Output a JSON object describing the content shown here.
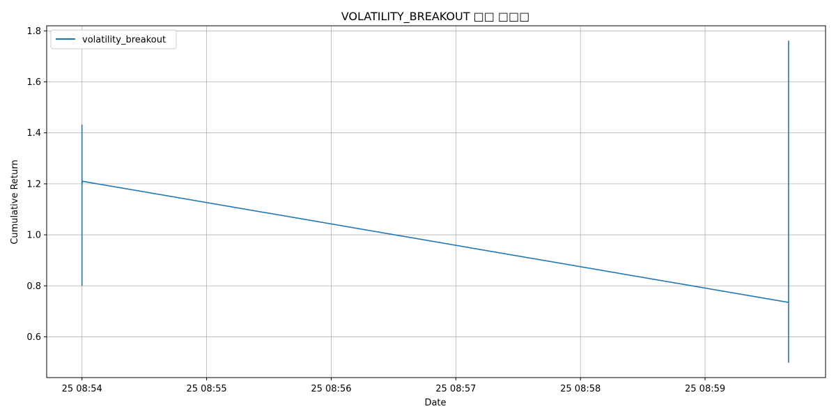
{
  "chart_data": {
    "type": "line",
    "title": "VOLATILITY_BREAKOUT □□ □□□",
    "xlabel": "Date",
    "ylabel": "Cumulative Return",
    "x_tick_labels": [
      "25 08:54",
      "25 08:55",
      "25 08:56",
      "25 08:57",
      "25 08:58",
      "25 08:59"
    ],
    "x_ticks_minutes": [
      "08:54",
      "08:55",
      "08:56",
      "08:57",
      "08:58",
      "08:59"
    ],
    "y_ticks": [
      0.6,
      0.8,
      1.0,
      1.2,
      1.4,
      1.6,
      1.8
    ],
    "y_tick_labels": [
      "0.6",
      "0.8",
      "1.0",
      "1.2",
      "1.4",
      "1.6",
      "1.8"
    ],
    "xlim": [
      "08:53:43",
      "08:59:58"
    ],
    "ylim": [
      0.44,
      1.82
    ],
    "grid": true,
    "legend_position": "top-left",
    "series": [
      {
        "name": "volatility_breakout",
        "color": "#1f77b4",
        "points": [
          [
            "08:54:00.0",
            0.8
          ],
          [
            "08:54:00.0",
            0.98
          ],
          [
            "08:54:00.0",
            0.85
          ],
          [
            "08:54:00.0",
            1.43
          ],
          [
            "08:54:00.0",
            1.04
          ],
          [
            "08:54:00.0",
            1.35
          ],
          [
            "08:54:00.0",
            0.9
          ],
          [
            "08:54:00.0",
            1.38
          ],
          [
            "08:54:00.0",
            1.2
          ],
          [
            "08:54:00.3",
            1.21
          ],
          [
            "08:59:40.2",
            0.735
          ],
          [
            "08:59:40.2",
            0.5
          ],
          [
            "08:59:40.2",
            0.68
          ],
          [
            "08:59:40.2",
            1.76
          ],
          [
            "08:59:40.2",
            1.02
          ],
          [
            "08:59:40.2",
            1.6
          ],
          [
            "08:59:40.2",
            0.63
          ],
          [
            "08:59:40.2",
            1.32
          ],
          [
            "08:59:40.2",
            1.06
          ],
          [
            "08:59:40.2",
            0.735
          ]
        ]
      }
    ]
  }
}
